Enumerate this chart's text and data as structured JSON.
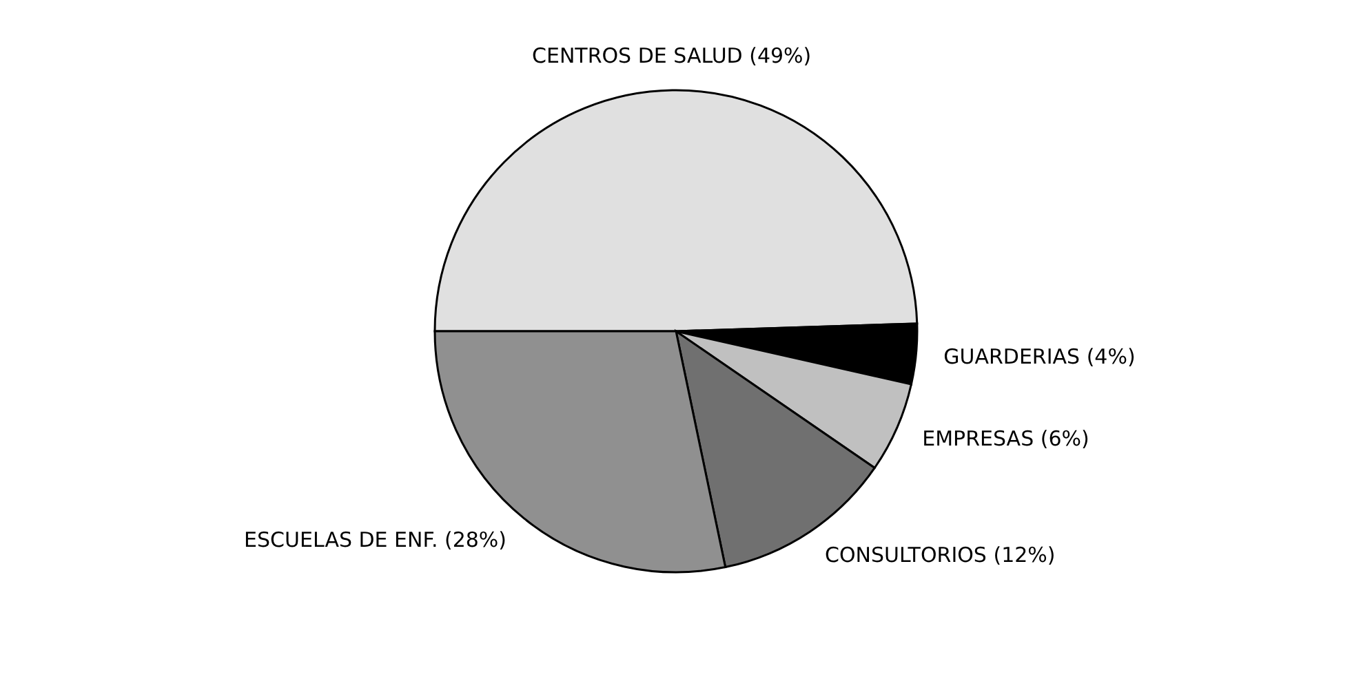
{
  "chart_data": {
    "type": "pie",
    "categories": [
      "CENTROS DE SALUD (49%)",
      "GUARDERIAS (4%)",
      "EMPRESAS (6%)",
      "CONSULTORIOS (12%)",
      "ESCUELAS DE ENF. (28%)"
    ],
    "values": [
      49,
      4,
      6,
      12,
      28
    ],
    "colors": [
      "#e0e0e0",
      "#000000",
      "#c0c0c0",
      "#707070",
      "#909090"
    ]
  }
}
